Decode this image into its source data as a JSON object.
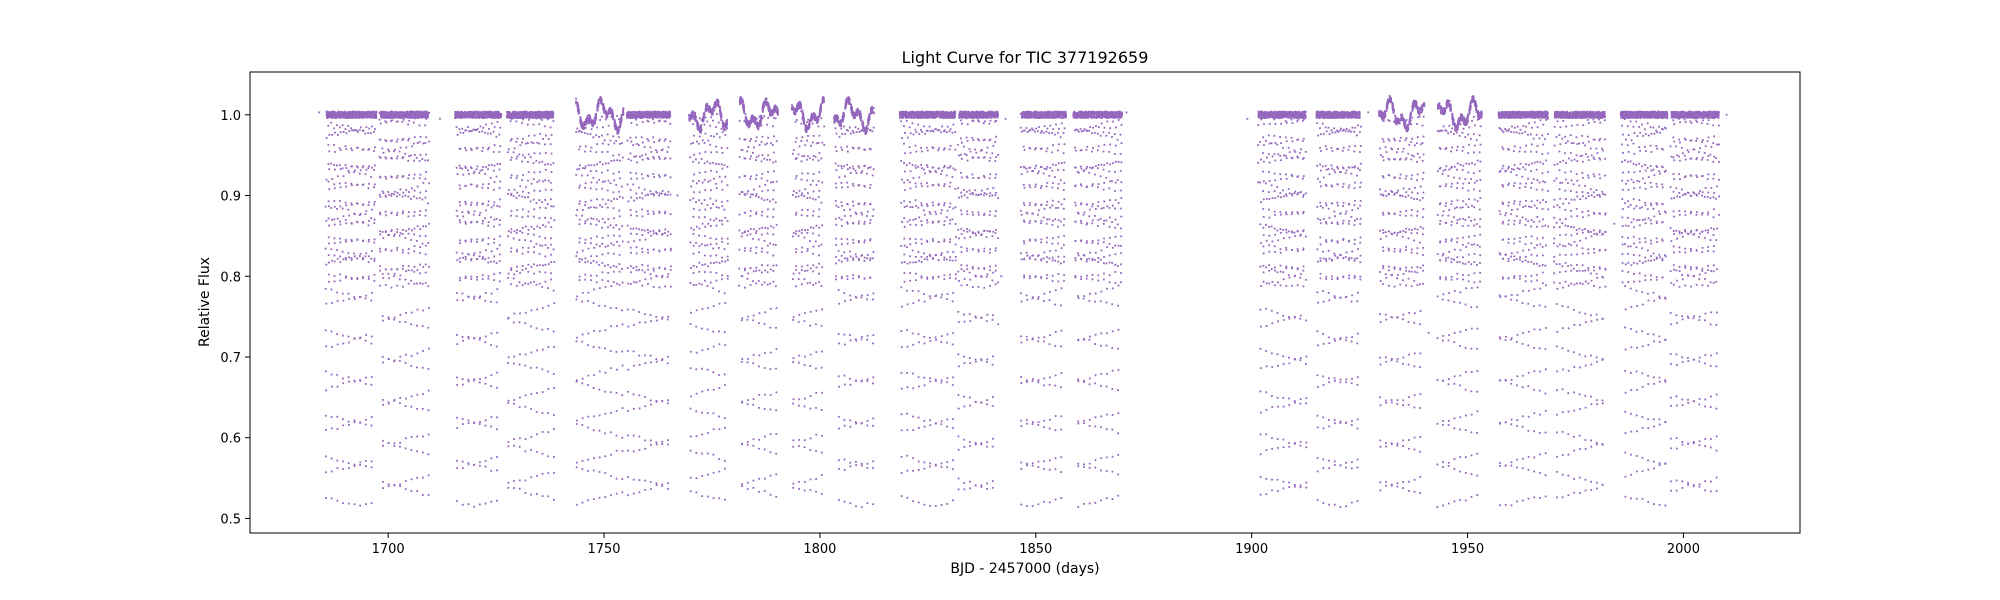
{
  "chart_data": {
    "type": "scatter",
    "title": "Light Curve for TIC 377192659",
    "xlabel": "BJD - 2457000 (days)",
    "ylabel": "Relative Flux",
    "xlim": [
      1668,
      2027
    ],
    "ylim": [
      0.482,
      1.053
    ],
    "xticks": [
      1700,
      1750,
      1800,
      1850,
      1900,
      1950,
      2000
    ],
    "yticks": [
      0.5,
      0.6,
      0.7,
      0.8,
      0.9,
      1.0
    ],
    "grid": false,
    "legend": "none",
    "marker_color": "#9467bd",
    "segments": [
      [
        1685.5,
        1697.3
      ],
      [
        1698.0,
        1709.5
      ],
      [
        1715.5,
        1726.2
      ],
      [
        1727.5,
        1738.5
      ],
      [
        1743.5,
        1754.5
      ],
      [
        1755.3,
        1765.5
      ],
      [
        1769.7,
        1778.7
      ],
      [
        1781.3,
        1790.3
      ],
      [
        1793.5,
        1801.0
      ],
      [
        1803.3,
        1812.5
      ],
      [
        1818.5,
        1831.5
      ],
      [
        1832.0,
        1841.3
      ],
      [
        1846.5,
        1857.0
      ],
      [
        1858.7,
        1870.0
      ],
      [
        1901.5,
        1912.7
      ],
      [
        1915.0,
        1925.3
      ],
      [
        1929.5,
        1940.0
      ],
      [
        1943.0,
        1953.3
      ],
      [
        1957.2,
        1968.7
      ],
      [
        1970.0,
        1982.0
      ],
      [
        1985.5,
        1996.3
      ],
      [
        1997.0,
        2008.3
      ]
    ],
    "active_segments": [
      4,
      6,
      7,
      8,
      9,
      16,
      17
    ],
    "period_days": 1.32,
    "out_of_eclipse_flux": 1.0,
    "primary_eclipse_depth_flux": 0.515,
    "secondary_eclipse_depth_flux": 0.787,
    "sparse_points": [
      {
        "x": 1684,
        "y": 1.003
      },
      {
        "x": 1712,
        "y": 0.995
      },
      {
        "x": 1738,
        "y": 1.003
      },
      {
        "x": 1767,
        "y": 0.9
      },
      {
        "x": 1786,
        "y": 0.998
      },
      {
        "x": 1843,
        "y": 0.995
      },
      {
        "x": 1842,
        "y": 0.8
      },
      {
        "x": 1871,
        "y": 1.003
      },
      {
        "x": 1899,
        "y": 0.995
      },
      {
        "x": 1903,
        "y": 0.996
      },
      {
        "x": 1927,
        "y": 1.003
      },
      {
        "x": 1941,
        "y": 0.73
      },
      {
        "x": 1984,
        "y": 0.865
      },
      {
        "x": 2010,
        "y": 1.0
      }
    ]
  }
}
